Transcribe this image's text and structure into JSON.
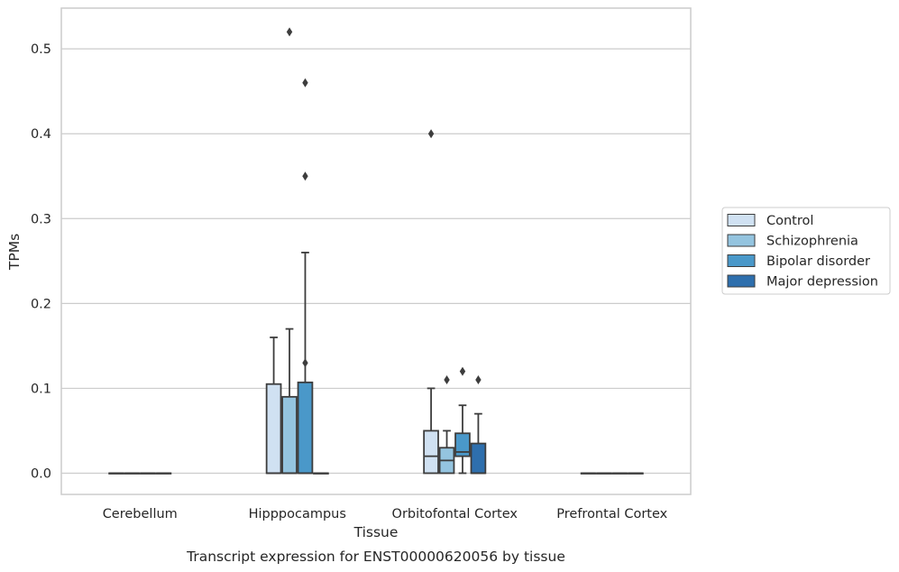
{
  "chart_data": {
    "type": "box",
    "title": "Transcript expression for ENST00000620056 by tissue",
    "xlabel": "Tissue",
    "ylabel": "TPMs",
    "ylim": [
      -0.025,
      0.548
    ],
    "yticks": [
      "0.0",
      "0.1",
      "0.2",
      "0.3",
      "0.4",
      "0.5"
    ],
    "grid": true,
    "legend_position": "right",
    "categories": [
      "Cerebellum",
      "Hipppocampus",
      "Orbitofontal Cortex",
      "Prefrontal Cortex"
    ],
    "series": [
      {
        "name": "Control",
        "color": "#d0e1f2",
        "boxes": [
          {
            "min": 0,
            "q1": 0,
            "median": 0,
            "q3": 0,
            "max": 0,
            "outliers": []
          },
          {
            "min": 0,
            "q1": 0,
            "median": 0,
            "q3": 0.105,
            "max": 0.16,
            "outliers": []
          },
          {
            "min": 0,
            "q1": 0,
            "median": 0.02,
            "q3": 0.05,
            "max": 0.1,
            "outliers": [
              0.4
            ]
          },
          {
            "min": 0,
            "q1": 0,
            "median": 0,
            "q3": 0,
            "max": 0,
            "outliers": []
          }
        ]
      },
      {
        "name": "Schizophrenia",
        "color": "#94c4df",
        "boxes": [
          {
            "min": 0,
            "q1": 0,
            "median": 0,
            "q3": 0,
            "max": 0,
            "outliers": []
          },
          {
            "min": 0,
            "q1": 0,
            "median": 0,
            "q3": 0.09,
            "max": 0.17,
            "outliers": [
              0.52
            ]
          },
          {
            "min": 0,
            "q1": 0,
            "median": 0.015,
            "q3": 0.03,
            "max": 0.05,
            "outliers": [
              0.11
            ]
          },
          {
            "min": 0,
            "q1": 0,
            "median": 0,
            "q3": 0,
            "max": 0,
            "outliers": []
          }
        ]
      },
      {
        "name": "Bipolar disorder",
        "color": "#4a98c9",
        "boxes": [
          {
            "min": 0,
            "q1": 0,
            "median": 0,
            "q3": 0,
            "max": 0,
            "outliers": []
          },
          {
            "min": 0,
            "q1": 0,
            "median": 0,
            "q3": 0.107,
            "max": 0.26,
            "outliers": [
              0.46,
              0.35,
              0.13
            ]
          },
          {
            "min": 0,
            "q1": 0.02,
            "median": 0.025,
            "q3": 0.047,
            "max": 0.08,
            "outliers": [
              0.12
            ]
          },
          {
            "min": 0,
            "q1": 0,
            "median": 0,
            "q3": 0,
            "max": 0,
            "outliers": []
          }
        ]
      },
      {
        "name": "Major depression",
        "color": "#2e6fad",
        "boxes": [
          {
            "min": 0,
            "q1": 0,
            "median": 0,
            "q3": 0,
            "max": 0,
            "outliers": []
          },
          {
            "min": 0,
            "q1": 0,
            "median": 0,
            "q3": 0,
            "max": 0,
            "outliers": []
          },
          {
            "min": 0,
            "q1": 0,
            "median": 0,
            "q3": 0.035,
            "max": 0.07,
            "outliers": [
              0.11
            ]
          },
          {
            "min": 0,
            "q1": 0,
            "median": 0,
            "q3": 0,
            "max": 0,
            "outliers": []
          }
        ]
      }
    ]
  }
}
